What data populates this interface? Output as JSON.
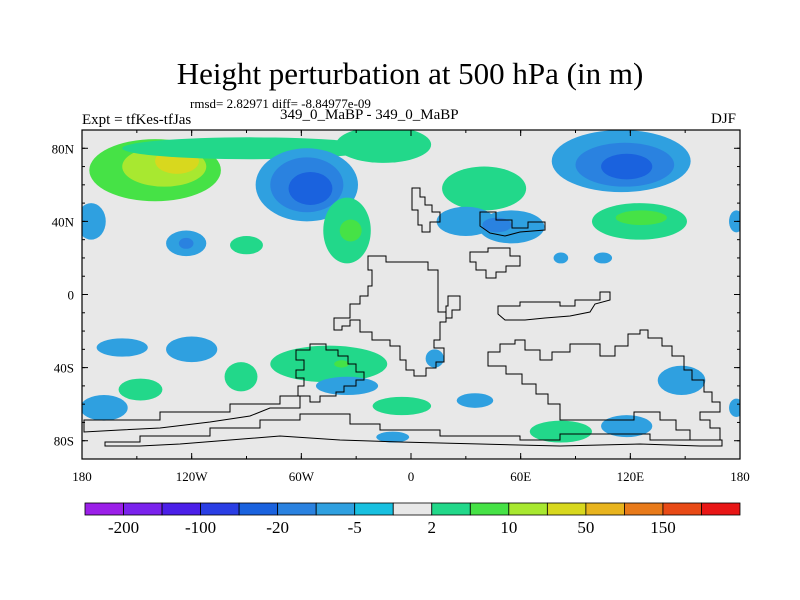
{
  "header": {
    "title": "Height perturbation at 500 hPa (in m)",
    "stats": "rmsd= 2.82971 diff= -8.84977e-09",
    "left_label": "Expt = tfKes-tfJas",
    "center_label": "349_0_MaBP - 349_0_MaBP",
    "right_label": "DJF"
  },
  "chart_data": {
    "type": "heatmap",
    "title": "Height perturbation at 500 hPa (in m)",
    "xlabel": "",
    "ylabel": "",
    "xlim": [
      -180,
      180
    ],
    "ylim": [
      -90,
      90
    ],
    "x_ticks": [
      {
        "value": -180,
        "label": "180"
      },
      {
        "value": -120,
        "label": "120W"
      },
      {
        "value": -60,
        "label": "60W"
      },
      {
        "value": 0,
        "label": "0"
      },
      {
        "value": 60,
        "label": "60E"
      },
      {
        "value": 120,
        "label": "120E"
      },
      {
        "value": 180,
        "label": "180"
      }
    ],
    "y_ticks": [
      {
        "value": 80,
        "label": "80N"
      },
      {
        "value": 40,
        "label": "40N"
      },
      {
        "value": 0,
        "label": "0"
      },
      {
        "value": -40,
        "label": "40S"
      },
      {
        "value": -80,
        "label": "80S"
      }
    ],
    "colorbar": {
      "colors": [
        "#9b1fe8",
        "#7a22ec",
        "#4b1fe8",
        "#2a3ee4",
        "#1a62de",
        "#2a82e0",
        "#2fa0e0",
        "#18c0e0",
        "#e8e8e8",
        "#22d88a",
        "#46e246",
        "#a8e830",
        "#d8d81e",
        "#e8b41e",
        "#e87a1a",
        "#e84a16",
        "#e81616"
      ],
      "tick_labels": [
        "-200",
        "-100",
        "-20",
        "-5",
        "2",
        "10",
        "50",
        "150"
      ]
    },
    "regions": [
      {
        "lon": -140,
        "lat": 68,
        "rx": 36,
        "ry": 17,
        "value": 10
      },
      {
        "lon": -135,
        "lat": 70,
        "rx": 23,
        "ry": 11,
        "value": 20
      },
      {
        "lon": -128,
        "lat": 73,
        "rx": 12,
        "ry": 7,
        "value": 50
      },
      {
        "lon": -88,
        "lat": 80,
        "rx": 70,
        "ry": 6,
        "value": 5
      },
      {
        "lon": -57,
        "lat": 60,
        "rx": 28,
        "ry": 20,
        "value": -5
      },
      {
        "lon": -57,
        "lat": 60,
        "rx": 20,
        "ry": 15,
        "value": -10
      },
      {
        "lon": -55,
        "lat": 58,
        "rx": 12,
        "ry": 9,
        "value": -20
      },
      {
        "lon": -175,
        "lat": 40,
        "rx": 8,
        "ry": 10,
        "value": -5
      },
      {
        "lon": -123,
        "lat": 28,
        "rx": 11,
        "ry": 7,
        "value": -5
      },
      {
        "lon": -123,
        "lat": 28,
        "rx": 4,
        "ry": 3,
        "value": -10
      },
      {
        "lon": -90,
        "lat": 27,
        "rx": 9,
        "ry": 5,
        "value": 5
      },
      {
        "lon": -15,
        "lat": 82,
        "rx": 26,
        "ry": 10,
        "value": 5
      },
      {
        "lon": -35,
        "lat": 35,
        "rx": 13,
        "ry": 18,
        "value": 5
      },
      {
        "lon": -33,
        "lat": 35,
        "rx": 6,
        "ry": 6,
        "value": 10
      },
      {
        "lon": 40,
        "lat": 58,
        "rx": 23,
        "ry": 12,
        "value": 5
      },
      {
        "lon": 30,
        "lat": 40,
        "rx": 16,
        "ry": 8,
        "value": -5
      },
      {
        "lon": 55,
        "lat": 37,
        "rx": 18,
        "ry": 9,
        "value": -5
      },
      {
        "lon": 47,
        "lat": 38,
        "rx": 8,
        "ry": 4,
        "value": -10
      },
      {
        "lon": 82,
        "lat": 20,
        "rx": 4,
        "ry": 3,
        "value": -5
      },
      {
        "lon": 115,
        "lat": 73,
        "rx": 38,
        "ry": 17,
        "value": -5
      },
      {
        "lon": 117,
        "lat": 71,
        "rx": 27,
        "ry": 12,
        "value": -10
      },
      {
        "lon": 118,
        "lat": 70,
        "rx": 14,
        "ry": 7,
        "value": -20
      },
      {
        "lon": 125,
        "lat": 40,
        "rx": 26,
        "ry": 10,
        "value": 5
      },
      {
        "lon": 126,
        "lat": 42,
        "rx": 14,
        "ry": 4,
        "value": 10
      },
      {
        "lon": 178,
        "lat": 40,
        "rx": 4,
        "ry": 6,
        "value": -5
      },
      {
        "lon": 105,
        "lat": 20,
        "rx": 5,
        "ry": 3,
        "value": -5
      },
      {
        "lon": -158,
        "lat": -29,
        "rx": 14,
        "ry": 5,
        "value": -5
      },
      {
        "lon": -120,
        "lat": -30,
        "rx": 14,
        "ry": 7,
        "value": -5
      },
      {
        "lon": -93,
        "lat": -45,
        "rx": 9,
        "ry": 8,
        "value": 5
      },
      {
        "lon": -148,
        "lat": -52,
        "rx": 12,
        "ry": 6,
        "value": 5
      },
      {
        "lon": -168,
        "lat": -62,
        "rx": 13,
        "ry": 7,
        "value": -5
      },
      {
        "lon": -45,
        "lat": -38,
        "rx": 32,
        "ry": 10,
        "value": 5
      },
      {
        "lon": -38,
        "lat": -38,
        "rx": 4,
        "ry": 2,
        "value": 10
      },
      {
        "lon": -35,
        "lat": -50,
        "rx": 17,
        "ry": 5,
        "value": -5
      },
      {
        "lon": 13,
        "lat": -35,
        "rx": 5,
        "ry": 5,
        "value": -5
      },
      {
        "lon": -5,
        "lat": -61,
        "rx": 16,
        "ry": 5,
        "value": 5
      },
      {
        "lon": -10,
        "lat": -78,
        "rx": 9,
        "ry": 3,
        "value": -5
      },
      {
        "lon": 35,
        "lat": -58,
        "rx": 10,
        "ry": 4,
        "value": -5
      },
      {
        "lon": 82,
        "lat": -75,
        "rx": 17,
        "ry": 6,
        "value": 5
      },
      {
        "lon": 118,
        "lat": -72,
        "rx": 14,
        "ry": 6,
        "value": -5
      },
      {
        "lon": 148,
        "lat": -47,
        "rx": 13,
        "ry": 8,
        "value": -5
      },
      {
        "lon": 178,
        "lat": -62,
        "rx": 4,
        "ry": 5,
        "value": -5
      }
    ]
  }
}
